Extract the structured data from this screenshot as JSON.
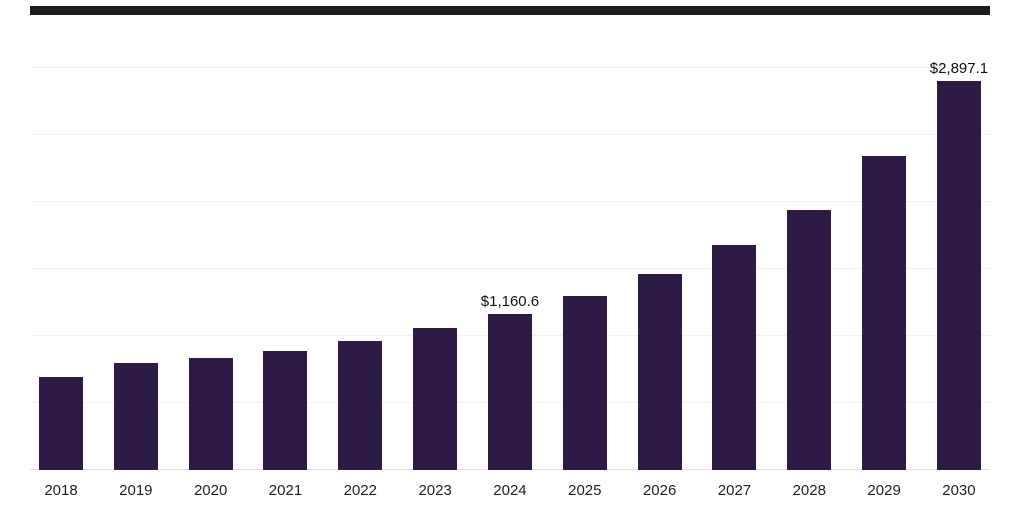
{
  "chart_data": {
    "type": "bar",
    "title": "",
    "xlabel": "",
    "ylabel": "",
    "categories": [
      "2018",
      "2019",
      "2020",
      "2021",
      "2022",
      "2023",
      "2024",
      "2025",
      "2026",
      "2027",
      "2028",
      "2029",
      "2030"
    ],
    "values": [
      690,
      800,
      835,
      890,
      960,
      1060,
      1160.6,
      1300,
      1465,
      1680,
      1940,
      2340,
      2897.1
    ],
    "annotations": [
      {
        "category": "2024",
        "text": "$1,160.6"
      },
      {
        "category": "2030",
        "text": "$2,897.1"
      }
    ],
    "ylim": [
      0,
      3430
    ],
    "gridline_values": [
      0,
      500,
      1000,
      1500,
      2000,
      2500,
      3000
    ],
    "grid": "horizontal-faint",
    "legend_position": "none",
    "bar_color": "#2e1a47",
    "gridline_color": "#f2f2f2",
    "baseline_color": "#e2e2e2",
    "label_color": "#111111",
    "tick_color": "#222222"
  }
}
